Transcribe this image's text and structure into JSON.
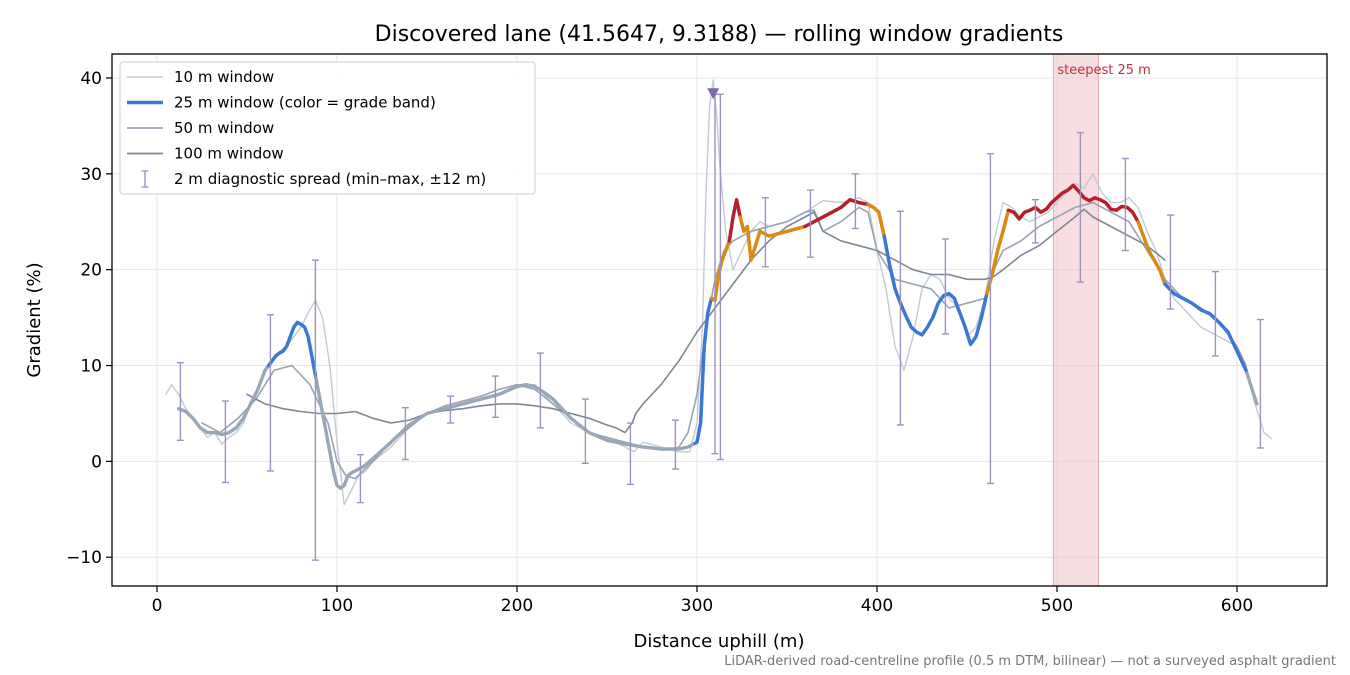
{
  "chart_data": {
    "type": "line",
    "title": "Discovered lane (41.5647, 9.3188) — rolling window gradients",
    "xlabel": "Distance uphill (m)",
    "ylabel": "Gradient (%)",
    "xlim": [
      -25,
      650
    ],
    "ylim": [
      -13,
      42.5
    ],
    "xticks": [
      0,
      100,
      200,
      300,
      400,
      500,
      600
    ],
    "yticks": [
      -10,
      0,
      10,
      20,
      30,
      40
    ],
    "grid": true,
    "legend_position": "upper-left",
    "footnote": "LiDAR-derived road-centreline profile (0.5 m DTM, bilinear) — not a surveyed asphalt gradient",
    "colors": {
      "w10": "#c2cad6",
      "w50": "#98a4b3",
      "w100": "#7d8796",
      "w25_base": "#9aa7b6",
      "band_blue": "#3a78d6",
      "band_orange": "#dd8a12",
      "band_red": "#b81d2a",
      "spread": "#9e93bf",
      "highlight": "#f0c8cd",
      "marker": "#7b68a6"
    },
    "highlight": {
      "x0": 498,
      "x1": 523,
      "label": "steepest 25 m"
    },
    "marker_point": {
      "x": 309,
      "y": 38.3
    },
    "series": [
      {
        "name": "10 m window",
        "key": "w10",
        "x": [
          5,
          8,
          12,
          16,
          20,
          24,
          28,
          32,
          36,
          40,
          44,
          48,
          52,
          56,
          60,
          64,
          68,
          72,
          76,
          80,
          84,
          88,
          92,
          96,
          100,
          104,
          108,
          112,
          116,
          120,
          130,
          140,
          150,
          160,
          170,
          180,
          190,
          200,
          210,
          220,
          230,
          240,
          250,
          260,
          265,
          270,
          280,
          290,
          296,
          300,
          303,
          305,
          307,
          309,
          311,
          313,
          316,
          320,
          325,
          330,
          335,
          340,
          350,
          360,
          370,
          380,
          390,
          395,
          400,
          405,
          410,
          415,
          420,
          425,
          430,
          435,
          440,
          445,
          450,
          455,
          460,
          465,
          470,
          475,
          480,
          485,
          490,
          495,
          500,
          505,
          510,
          515,
          520,
          525,
          530,
          535,
          540,
          545,
          550,
          555,
          560,
          565,
          570,
          575,
          580,
          585,
          590,
          595,
          600,
          605,
          610,
          615,
          619
        ],
        "y": [
          7,
          8,
          7,
          5.5,
          4.5,
          3.5,
          2.5,
          3,
          1.8,
          2.5,
          3,
          4,
          6,
          7.5,
          9.5,
          10.5,
          11.5,
          12,
          13,
          14,
          15.5,
          16.8,
          15,
          10,
          2,
          -4.5,
          -3,
          -1.5,
          -1,
          0,
          1.5,
          3.5,
          5,
          5.8,
          6.3,
          6.5,
          7,
          8,
          8,
          6,
          4,
          3,
          2.5,
          1.5,
          1,
          2,
          1.5,
          1,
          1,
          4,
          14,
          28,
          37,
          39.8,
          36,
          30,
          24,
          20,
          22,
          24,
          25,
          24.5,
          25,
          26,
          27.2,
          27,
          27.5,
          27,
          22,
          18,
          12,
          9.5,
          13,
          18,
          19.5,
          19,
          17,
          16,
          13,
          14,
          17,
          23,
          27,
          26.5,
          25.5,
          25,
          25.5,
          26,
          27,
          28,
          29,
          28.5,
          30,
          28,
          27,
          27,
          27.5,
          26.5,
          24,
          22,
          19,
          17,
          16,
          15,
          14,
          13.5,
          13,
          12.5,
          12,
          10,
          6,
          3,
          2.4
        ]
      },
      {
        "name": "25 m window (color = grade band)",
        "key": "w25",
        "x": [
          12,
          16,
          20,
          24,
          28,
          32,
          36,
          40,
          44,
          48,
          52,
          56,
          60,
          64,
          66,
          68,
          70,
          72,
          74,
          76,
          78,
          80,
          82,
          84,
          86,
          88,
          90,
          92,
          94,
          96,
          98,
          100,
          102,
          104,
          106,
          108,
          110,
          115,
          120,
          130,
          140,
          150,
          160,
          170,
          180,
          190,
          200,
          205,
          210,
          215,
          220,
          230,
          240,
          250,
          260,
          270,
          280,
          290,
          295,
          300,
          302,
          304,
          306,
          308,
          310,
          312,
          314,
          316,
          318,
          320,
          322,
          324,
          326,
          328,
          330,
          335,
          340,
          350,
          360,
          365,
          370,
          375,
          380,
          385,
          390,
          395,
          398,
          401,
          404,
          407,
          410,
          413,
          416,
          419,
          422,
          425,
          428,
          431,
          434,
          437,
          440,
          443,
          446,
          449,
          452,
          455,
          458,
          461,
          464,
          467,
          470,
          473,
          476,
          479,
          482,
          485,
          488,
          491,
          494,
          497,
          500,
          503,
          506,
          509,
          512,
          515,
          518,
          521,
          524,
          527,
          530,
          533,
          536,
          539,
          542,
          545,
          548,
          551,
          554,
          557,
          560,
          565,
          570,
          575,
          580,
          585,
          590,
          595,
          600,
          605,
          611
        ],
        "y": [
          5.5,
          5.2,
          4.5,
          3.5,
          3,
          3,
          2.8,
          3,
          3.5,
          4.5,
          6,
          7.5,
          9.5,
          10.5,
          11,
          11.3,
          11.5,
          12,
          13,
          14,
          14.5,
          14.3,
          14,
          13,
          11,
          9,
          7,
          5,
          3,
          1,
          -1,
          -2.5,
          -2.8,
          -2.5,
          -1.5,
          -1.2,
          -1,
          -0.5,
          0.3,
          2,
          3.8,
          5,
          5.5,
          6,
          6.5,
          7,
          7.8,
          8,
          7.8,
          7.2,
          6.5,
          4.5,
          3,
          2.2,
          1.8,
          1.5,
          1.3,
          1.3,
          1.5,
          2,
          4,
          12,
          15.5,
          17,
          16.8,
          19.5,
          21,
          22,
          23,
          25.5,
          27.3,
          25.5,
          24,
          24.5,
          21,
          24,
          23.5,
          24,
          24.5,
          25,
          25.5,
          26,
          26.5,
          27.3,
          27,
          26.8,
          26.5,
          26,
          23.5,
          20.5,
          18,
          16.5,
          15.2,
          14,
          13.5,
          13.2,
          14,
          15,
          16.5,
          17.3,
          17.5,
          17,
          15.5,
          14,
          12.2,
          13,
          15,
          17.5,
          19.5,
          22,
          24,
          26.2,
          26,
          25.3,
          26,
          26.2,
          26.5,
          26,
          26.3,
          27,
          27.5,
          28,
          28.3,
          28.8,
          28.2,
          27.5,
          27.2,
          27.5,
          27.3,
          27,
          26.3,
          26.2,
          26.6,
          26.5,
          26,
          25,
          23.5,
          22,
          21,
          20,
          18.5,
          17.5,
          17,
          16.5,
          15.8,
          15.4,
          14.5,
          13.5,
          11.5,
          9.5,
          6
        ]
      },
      {
        "name": "50 m window",
        "key": "w50",
        "x": [
          25,
          35,
          45,
          55,
          65,
          75,
          85,
          95,
          100,
          105,
          110,
          120,
          130,
          140,
          150,
          160,
          170,
          180,
          190,
          200,
          210,
          220,
          230,
          240,
          250,
          260,
          270,
          280,
          285,
          290,
          295,
          300,
          305,
          310,
          315,
          320,
          330,
          340,
          350,
          360,
          365,
          370,
          380,
          390,
          395,
          400,
          410,
          420,
          430,
          440,
          450,
          460,
          465,
          470,
          480,
          490,
          500,
          510,
          520,
          530,
          540,
          550,
          560,
          570,
          580,
          590,
          600,
          605
        ],
        "y": [
          4,
          3,
          4.5,
          6.5,
          9.5,
          10,
          8,
          4,
          0,
          -1.5,
          -1.8,
          0,
          2,
          3.5,
          5,
          5.8,
          6.3,
          6.8,
          7.5,
          8,
          7.5,
          6,
          4.5,
          3,
          2.5,
          2,
          1.5,
          1.2,
          1.2,
          1.5,
          3,
          7,
          14,
          19,
          22,
          23,
          24,
          24.5,
          25,
          26,
          26.2,
          24,
          25,
          26.5,
          26,
          22,
          19,
          18.5,
          18,
          16,
          16.5,
          17,
          20,
          22,
          23,
          24.5,
          25.5,
          26.5,
          27,
          26,
          25,
          22,
          19,
          17,
          16,
          14.5,
          12,
          10
        ]
      },
      {
        "name": "100 m window",
        "key": "w100",
        "x": [
          50,
          60,
          70,
          80,
          90,
          100,
          110,
          120,
          130,
          140,
          150,
          160,
          170,
          180,
          190,
          200,
          210,
          220,
          230,
          240,
          250,
          255,
          260,
          262,
          264,
          266,
          270,
          280,
          290,
          300,
          310,
          320,
          330,
          340,
          350,
          360,
          365,
          370,
          380,
          390,
          400,
          410,
          420,
          430,
          440,
          450,
          460,
          465,
          470,
          480,
          490,
          500,
          510,
          515,
          520,
          530,
          540,
          550,
          560
        ],
        "y": [
          7,
          6,
          5.5,
          5.2,
          5,
          5,
          5.2,
          4.5,
          4,
          4.3,
          5,
          5.3,
          5.5,
          5.8,
          6,
          6,
          5.8,
          5.5,
          5,
          4.5,
          3.8,
          3.5,
          3,
          3.5,
          4,
          5,
          6,
          8,
          10.5,
          13.5,
          16,
          18.5,
          21,
          23,
          24.5,
          25.5,
          26,
          24,
          23,
          22.5,
          22,
          21,
          20,
          19.5,
          19.5,
          19,
          19,
          19.3,
          20,
          21.5,
          22.5,
          24,
          25.5,
          26.3,
          25.5,
          24.5,
          23.5,
          22.5,
          21
        ]
      }
    ],
    "band_segments": [
      {
        "band": "band_blue",
        "x0": 62,
        "x1": 88
      },
      {
        "band": "band_blue",
        "x0": 299,
        "x1": 308
      },
      {
        "band": "band_orange",
        "x0": 308,
        "x1": 318
      },
      {
        "band": "band_red",
        "x0": 318,
        "x1": 324
      },
      {
        "band": "band_orange",
        "x0": 324,
        "x1": 360
      },
      {
        "band": "band_red",
        "x0": 360,
        "x1": 395
      },
      {
        "band": "band_orange",
        "x0": 395,
        "x1": 404
      },
      {
        "band": "band_blue",
        "x0": 404,
        "x1": 461
      },
      {
        "band": "band_orange",
        "x0": 461,
        "x1": 473
      },
      {
        "band": "band_red",
        "x0": 473,
        "x1": 545
      },
      {
        "band": "band_orange",
        "x0": 545,
        "x1": 560
      },
      {
        "band": "band_blue",
        "x0": 560,
        "x1": 605
      }
    ],
    "spread": [
      {
        "x": 13,
        "min": 2.2,
        "max": 10.3
      },
      {
        "x": 38,
        "min": -2.2,
        "max": 6.3
      },
      {
        "x": 63,
        "min": -1,
        "max": 15.3
      },
      {
        "x": 88,
        "min": -10.3,
        "max": 21
      },
      {
        "x": 113,
        "min": -4.3,
        "max": 0.7
      },
      {
        "x": 138,
        "min": 0.2,
        "max": 5.6
      },
      {
        "x": 163,
        "min": 4,
        "max": 6.8
      },
      {
        "x": 188,
        "min": 4.6,
        "max": 8.9
      },
      {
        "x": 213,
        "min": 3.5,
        "max": 11.3
      },
      {
        "x": 238,
        "min": -0.2,
        "max": 6.5
      },
      {
        "x": 263,
        "min": -2.4,
        "max": 4
      },
      {
        "x": 288,
        "min": -0.8,
        "max": 4.3
      },
      {
        "x": 310,
        "min": 0.8,
        "max": 38.3
      },
      {
        "x": 313,
        "min": 0.2,
        "max": 38.3
      },
      {
        "x": 338,
        "min": 20.3,
        "max": 27.5
      },
      {
        "x": 363,
        "min": 21.3,
        "max": 28.3
      },
      {
        "x": 388,
        "min": 24.3,
        "max": 30
      },
      {
        "x": 413,
        "min": 3.8,
        "max": 26.1
      },
      {
        "x": 438,
        "min": 13.3,
        "max": 23.2
      },
      {
        "x": 463,
        "min": -2.3,
        "max": 32.1
      },
      {
        "x": 488,
        "min": 22.8,
        "max": 27.3
      },
      {
        "x": 513,
        "min": 18.7,
        "max": 34.3
      },
      {
        "x": 538,
        "min": 22,
        "max": 31.6
      },
      {
        "x": 563,
        "min": 15.9,
        "max": 25.7
      },
      {
        "x": 588,
        "min": 11,
        "max": 19.8
      },
      {
        "x": 613,
        "min": 1.4,
        "max": 14.8
      }
    ],
    "legend": [
      {
        "label": "10 m window",
        "style": "w10"
      },
      {
        "label": "25 m window (color = grade band)",
        "style": "band_blue"
      },
      {
        "label": "50 m window",
        "style": "w50"
      },
      {
        "label": "100 m window",
        "style": "w100"
      },
      {
        "label": "2 m diagnostic spread (min–max, ±12 m)",
        "style": "spread"
      }
    ]
  }
}
